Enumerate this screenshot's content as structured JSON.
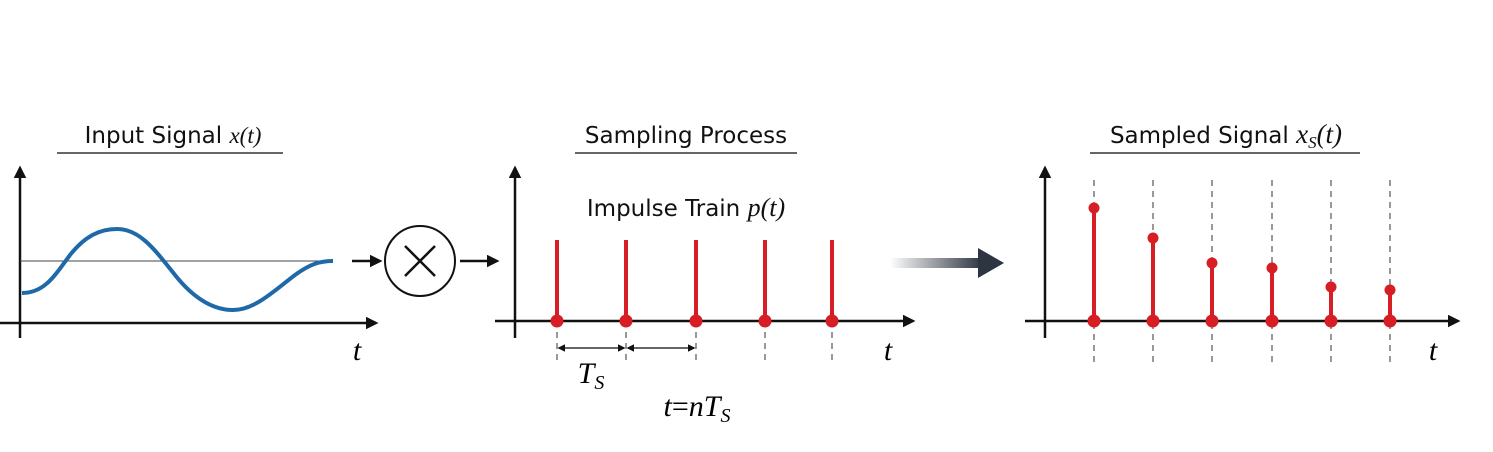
{
  "panels": [
    {
      "title": {
        "label": "Input Signal",
        "symbol": "x(t)"
      },
      "axis_label": "t"
    },
    {
      "title": {
        "label": "Sampling Process"
      },
      "axis_label": "t",
      "subtitle": {
        "label": "Impulse Train",
        "symbol": "p(t)"
      },
      "period": {
        "base": "T",
        "sub": "S"
      },
      "sample_time": {
        "lhs": "t",
        "eq": "=",
        "base": "nT",
        "sub": "S"
      }
    },
    {
      "title": {
        "label": "Sampled Signal",
        "base": "x",
        "sub": "S",
        "arg": "(t)"
      },
      "axis_label": "t"
    }
  ]
}
